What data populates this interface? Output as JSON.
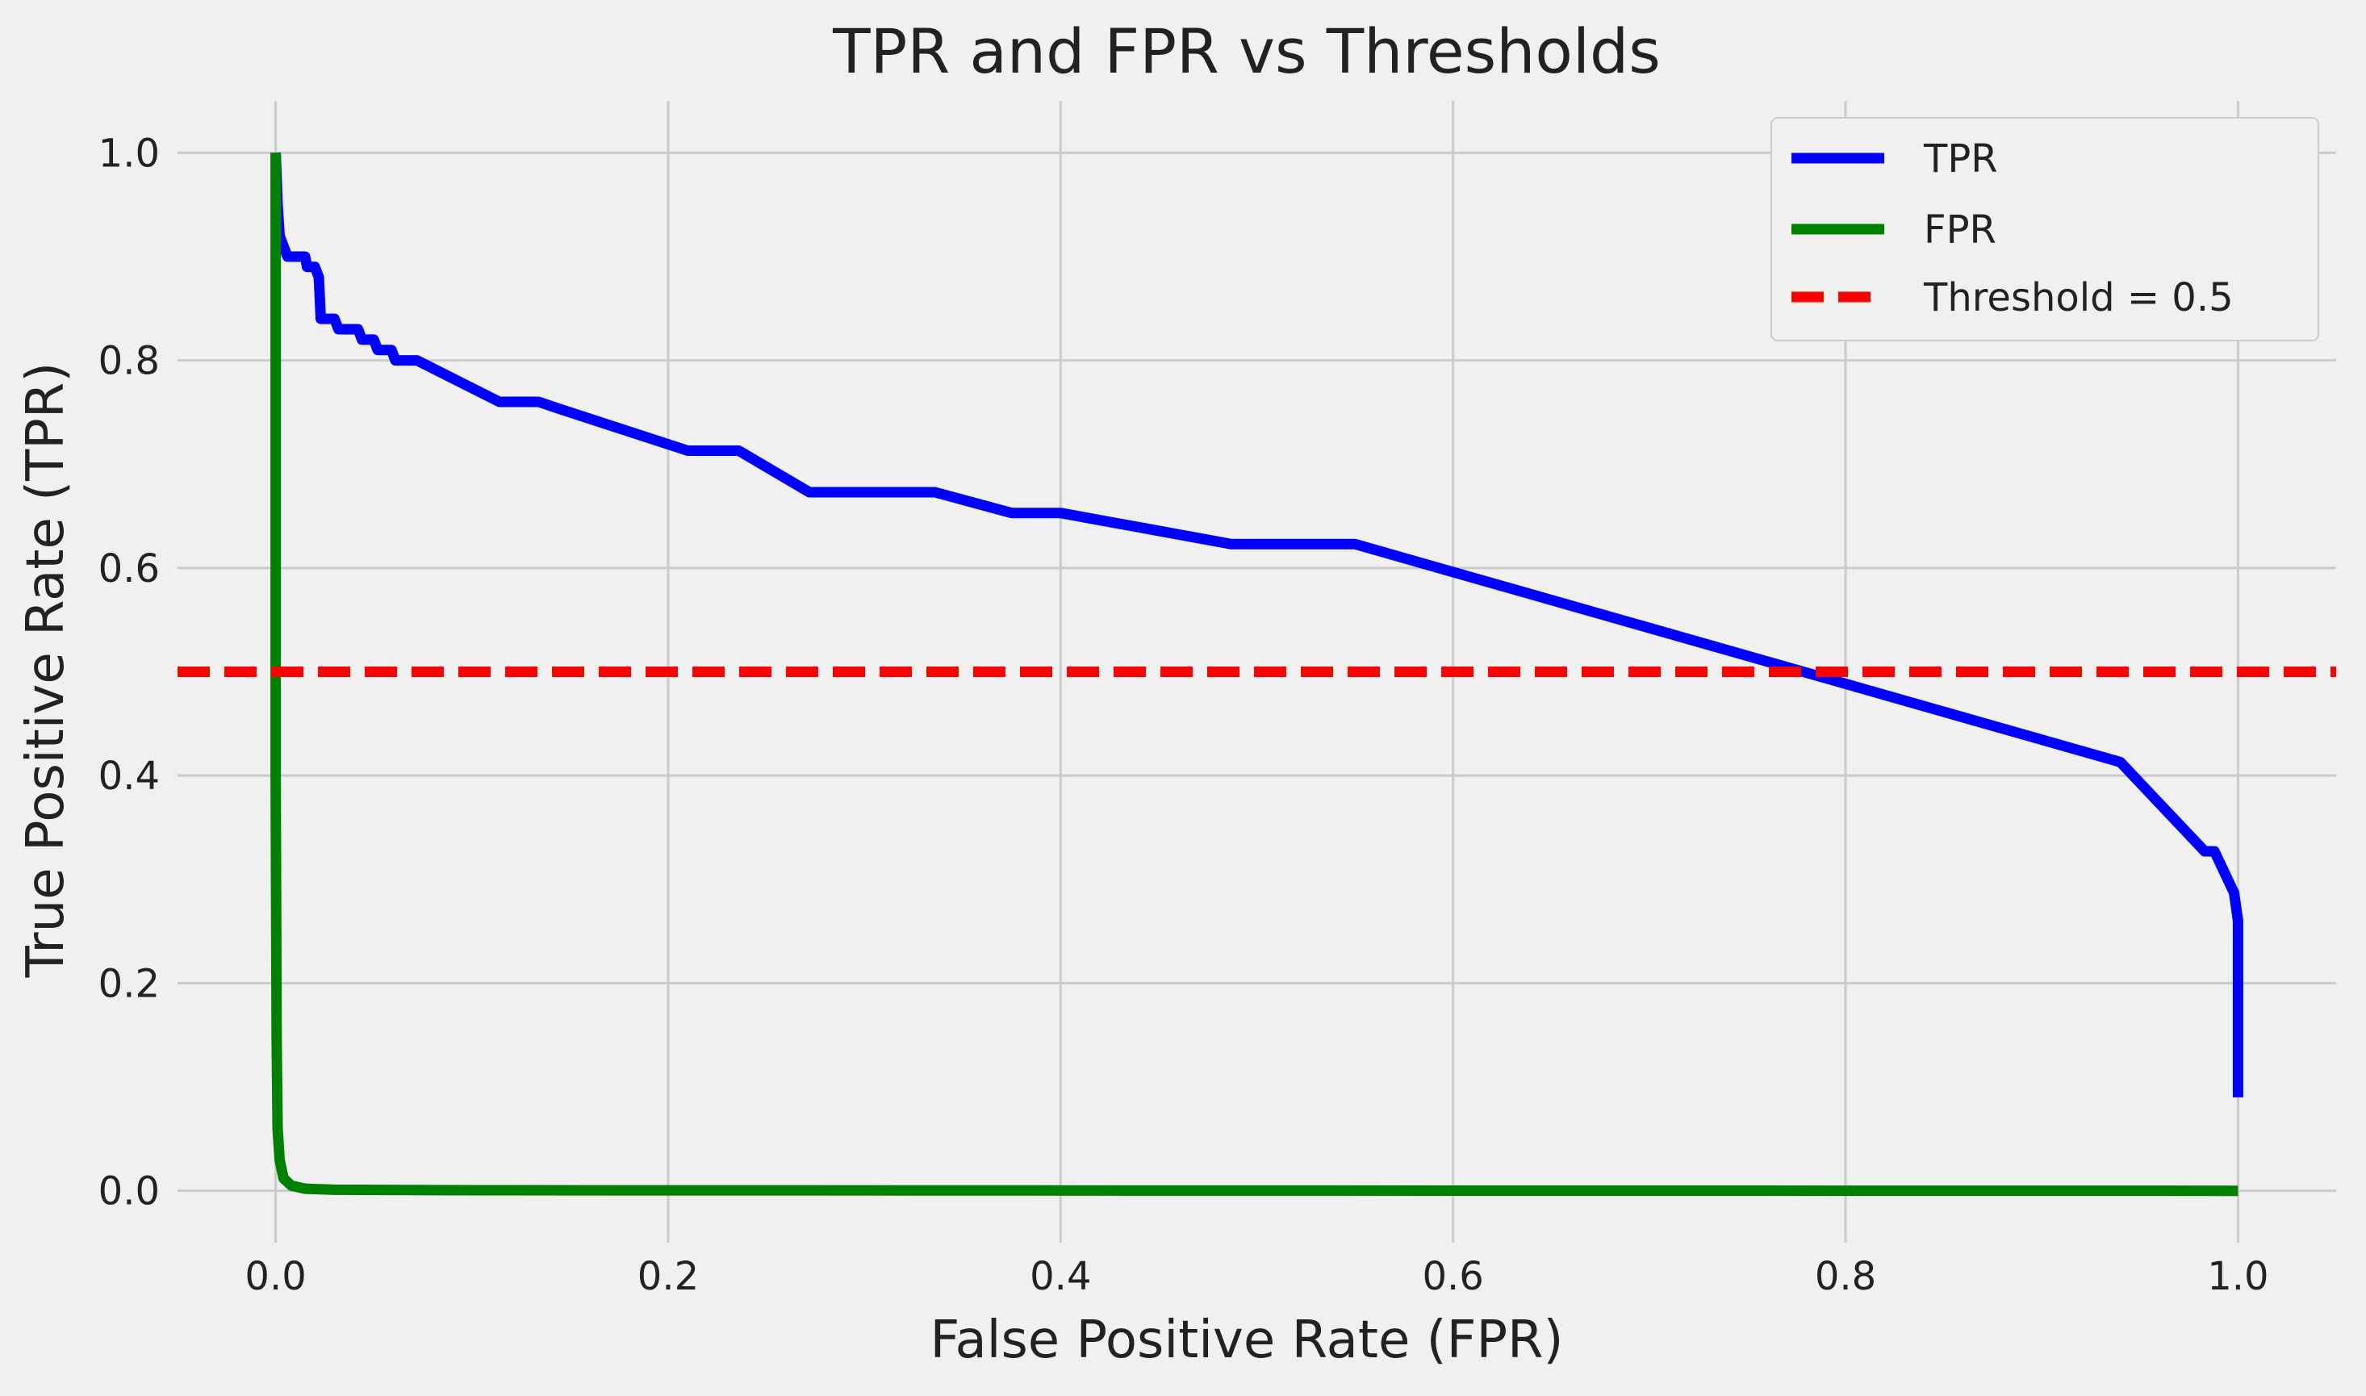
{
  "chart_data": {
    "type": "line",
    "title": "TPR and FPR vs Thresholds",
    "xlabel": "False Positive Rate (FPR)",
    "ylabel": "True Positive Rate (TPR)",
    "xlim": [
      -0.05,
      1.05
    ],
    "ylim": [
      -0.05,
      1.05
    ],
    "xticks": [
      0.0,
      0.2,
      0.4,
      0.6,
      0.8,
      1.0
    ],
    "yticks": [
      0.0,
      0.2,
      0.4,
      0.6,
      0.8,
      1.0
    ],
    "xtick_labels": [
      "0.0",
      "0.2",
      "0.4",
      "0.6",
      "0.8",
      "1.0"
    ],
    "ytick_labels": [
      "0.0",
      "0.2",
      "0.4",
      "0.6",
      "0.8",
      "1.0"
    ],
    "grid": true,
    "legend_position": "top-right",
    "series": [
      {
        "name": "TPR",
        "color": "#0000ff",
        "style": "solid",
        "points": [
          [
            0.0,
            1.0
          ],
          [
            0.001,
            0.95
          ],
          [
            0.002,
            0.92
          ],
          [
            0.004,
            0.91
          ],
          [
            0.006,
            0.9
          ],
          [
            0.015,
            0.9
          ],
          [
            0.016,
            0.89
          ],
          [
            0.02,
            0.89
          ],
          [
            0.022,
            0.88
          ],
          [
            0.023,
            0.84
          ],
          [
            0.03,
            0.84
          ],
          [
            0.032,
            0.83
          ],
          [
            0.042,
            0.83
          ],
          [
            0.044,
            0.82
          ],
          [
            0.05,
            0.82
          ],
          [
            0.052,
            0.81
          ],
          [
            0.059,
            0.81
          ],
          [
            0.061,
            0.8
          ],
          [
            0.072,
            0.8
          ],
          [
            0.114,
            0.76
          ],
          [
            0.134,
            0.76
          ],
          [
            0.145,
            0.753
          ],
          [
            0.21,
            0.713
          ],
          [
            0.236,
            0.713
          ],
          [
            0.272,
            0.673
          ],
          [
            0.336,
            0.673
          ],
          [
            0.375,
            0.653
          ],
          [
            0.4,
            0.653
          ],
          [
            0.487,
            0.623
          ],
          [
            0.55,
            0.623
          ],
          [
            0.94,
            0.413
          ],
          [
            0.983,
            0.327
          ],
          [
            0.988,
            0.327
          ],
          [
            0.998,
            0.287
          ],
          [
            1.0,
            0.26
          ],
          [
            1.0,
            0.2
          ],
          [
            1.0,
            0.09
          ]
        ]
      },
      {
        "name": "FPR",
        "color": "#008000",
        "style": "solid",
        "points": [
          [
            0.0,
            1.0
          ],
          [
            0.0,
            0.7
          ],
          [
            0.0,
            0.4
          ],
          [
            0.0005,
            0.15
          ],
          [
            0.001,
            0.06
          ],
          [
            0.002,
            0.03
          ],
          [
            0.004,
            0.012
          ],
          [
            0.008,
            0.005
          ],
          [
            0.015,
            0.002
          ],
          [
            0.03,
            0.001
          ],
          [
            0.1,
            0.0005
          ],
          [
            0.5,
            0.0002
          ],
          [
            1.0,
            0.0
          ]
        ]
      },
      {
        "name": "Threshold = 0.5",
        "color": "#ff0000",
        "style": "dashed",
        "points": [
          [
            -0.05,
            0.5
          ],
          [
            1.05,
            0.5
          ]
        ]
      }
    ]
  }
}
